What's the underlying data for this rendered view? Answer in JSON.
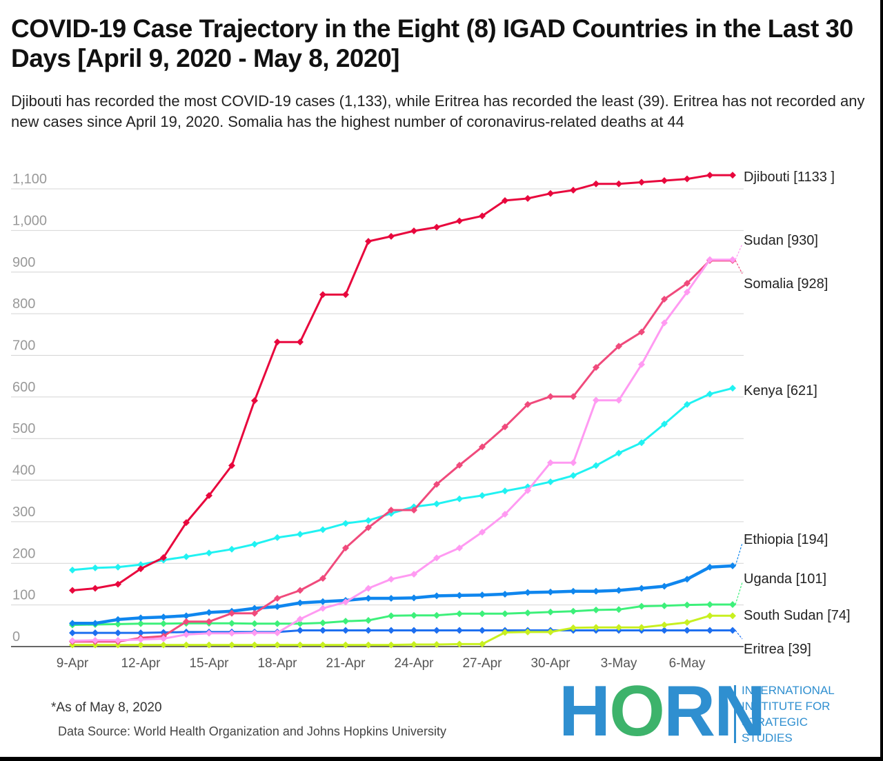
{
  "title": "COVID-19 Case Trajectory in the Eight (8) IGAD Countries in the Last 30 Days [April 9, 2020 - May 8, 2020]",
  "subtitle": "Djibouti has recorded the most COVID-19 cases (1,133), while Eritrea has recorded the least (39). Eritrea has not recorded any new cases since April 19, 2020. Somalia has the highest number of coronavirus-related deaths at 44",
  "footnote": "*As of May 8, 2020",
  "source": "Data Source: World Health Organization and Johns Hopkins University",
  "logo": {
    "wordmark_start": "H",
    "wordmark_o": "O",
    "wordmark_end": "RN",
    "lines": [
      "INTERNATIONAL",
      "INSTITUTE FOR",
      "STRATEGIC",
      "STUDIES"
    ]
  },
  "chart_data": {
    "type": "line",
    "ylim": [
      0,
      1100
    ],
    "y_ticks": [
      0,
      100,
      200,
      300,
      400,
      500,
      600,
      700,
      800,
      900,
      "1,000",
      "1,100"
    ],
    "x_ticks": [
      "9-Apr",
      "12-Apr",
      "15-Apr",
      "18-Apr",
      "21-Apr",
      "24-Apr",
      "27-Apr",
      "30-Apr",
      "3-May",
      "6-May"
    ],
    "x": [
      "9-Apr",
      "10-Apr",
      "11-Apr",
      "12-Apr",
      "13-Apr",
      "14-Apr",
      "15-Apr",
      "16-Apr",
      "17-Apr",
      "18-Apr",
      "19-Apr",
      "20-Apr",
      "21-Apr",
      "22-Apr",
      "23-Apr",
      "24-Apr",
      "25-Apr",
      "26-Apr",
      "27-Apr",
      "28-Apr",
      "29-Apr",
      "30-Apr",
      "1-May",
      "2-May",
      "3-May",
      "4-May",
      "5-May",
      "6-May",
      "7-May",
      "8-May"
    ],
    "grid": true,
    "series": [
      {
        "name": "Djibouti",
        "end_label": "Djibouti [1133 ]",
        "color": "#e8073d",
        "values": [
          135,
          140,
          150,
          187,
          214,
          298,
          363,
          435,
          591,
          732,
          732,
          846,
          846,
          974,
          986,
          999,
          1008,
          1023,
          1035,
          1072,
          1077,
          1089,
          1097,
          1112,
          1112,
          1116,
          1120,
          1124,
          1133,
          1133
        ]
      },
      {
        "name": "Sudan",
        "end_label": "Sudan [930]",
        "color": "#ff9af2",
        "values": [
          14,
          15,
          15,
          17,
          19,
          29,
          32,
          32,
          33,
          33,
          66,
          92,
          107,
          140,
          162,
          174,
          213,
          237,
          275,
          318,
          375,
          442,
          442,
          592,
          592,
          678,
          778,
          852,
          930,
          930
        ]
      },
      {
        "name": "Somalia",
        "end_label": "Somalia [928]",
        "color": "#f04a7c",
        "values": [
          12,
          12,
          12,
          21,
          25,
          60,
          60,
          80,
          80,
          116,
          135,
          164,
          237,
          286,
          328,
          328,
          390,
          436,
          480,
          528,
          582,
          601,
          601,
          671,
          722,
          756,
          835,
          873,
          928,
          928
        ]
      },
      {
        "name": "Kenya",
        "end_label": "Kenya [621]",
        "color": "#20f2f2",
        "values": [
          184,
          189,
          191,
          197,
          208,
          216,
          225,
          234,
          246,
          262,
          270,
          281,
          296,
          303,
          320,
          336,
          343,
          355,
          363,
          374,
          384,
          396,
          411,
          435,
          465,
          490,
          535,
          582,
          607,
          621
        ]
      },
      {
        "name": "Ethiopia",
        "end_label": "Ethiopia [194]",
        "color": "#0f86ee",
        "values": [
          56,
          56,
          65,
          69,
          71,
          74,
          82,
          85,
          92,
          96,
          105,
          108,
          111,
          116,
          116,
          117,
          122,
          123,
          124,
          126,
          130,
          131,
          133,
          133,
          135,
          140,
          145,
          162,
          191,
          194
        ]
      },
      {
        "name": "Uganda",
        "end_label": "Uganda [101]",
        "color": "#3df07a",
        "values": [
          52,
          53,
          54,
          55,
          55,
          56,
          56,
          56,
          55,
          55,
          55,
          57,
          61,
          63,
          74,
          75,
          75,
          79,
          79,
          79,
          81,
          83,
          85,
          88,
          89,
          97,
          98,
          100,
          101,
          101
        ]
      },
      {
        "name": "South Sudan",
        "end_label": "South Sudan [74]",
        "color": "#c8f020",
        "values": [
          4,
          4,
          4,
          4,
          4,
          4,
          4,
          4,
          4,
          4,
          4,
          4,
          4,
          4,
          4,
          5,
          5,
          6,
          6,
          34,
          35,
          35,
          45,
          46,
          46,
          46,
          52,
          58,
          74,
          74
        ]
      },
      {
        "name": "Eritrea",
        "end_label": "Eritrea [39]",
        "color": "#1e6ff0",
        "values": [
          33,
          33,
          33,
          33,
          34,
          35,
          35,
          35,
          35,
          35,
          39,
          39,
          39,
          39,
          39,
          39,
          39,
          39,
          39,
          39,
          39,
          39,
          39,
          39,
          39,
          39,
          39,
          39,
          39,
          39
        ]
      }
    ]
  }
}
